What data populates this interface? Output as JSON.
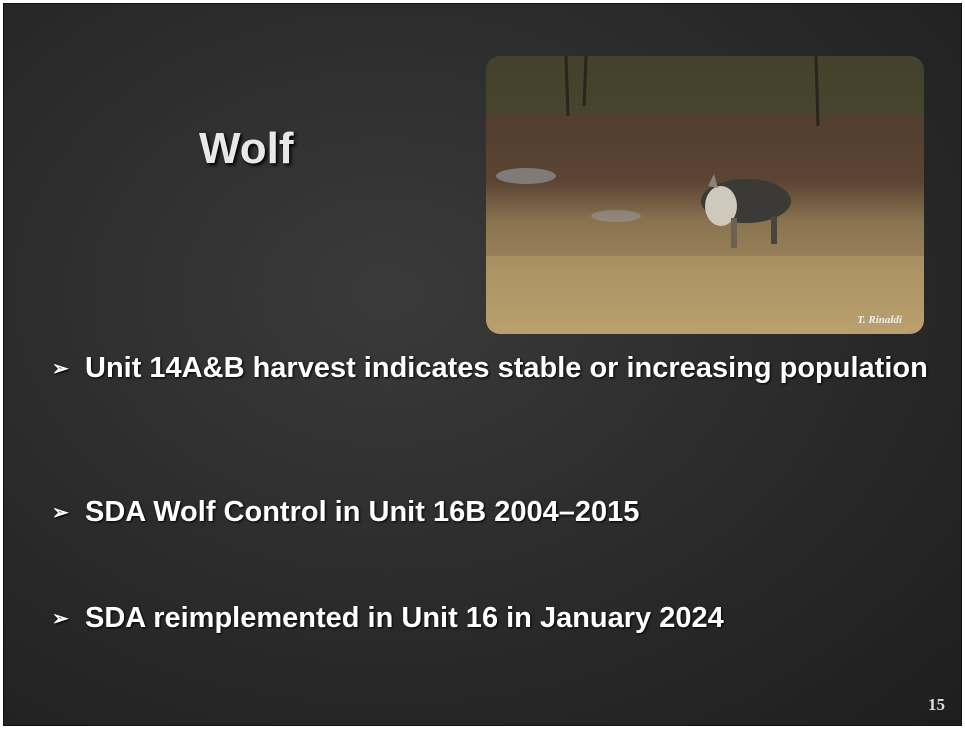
{
  "title": "Wolf",
  "photo_credit": "T. Rinaldi",
  "bullets": [
    "Unit 14A&B harvest indicates stable or increasing population",
    "SDA Wolf Control in Unit 16B 2004–2015",
    "SDA reimplemented in Unit 16 in January 2024"
  ],
  "page_number": "15"
}
